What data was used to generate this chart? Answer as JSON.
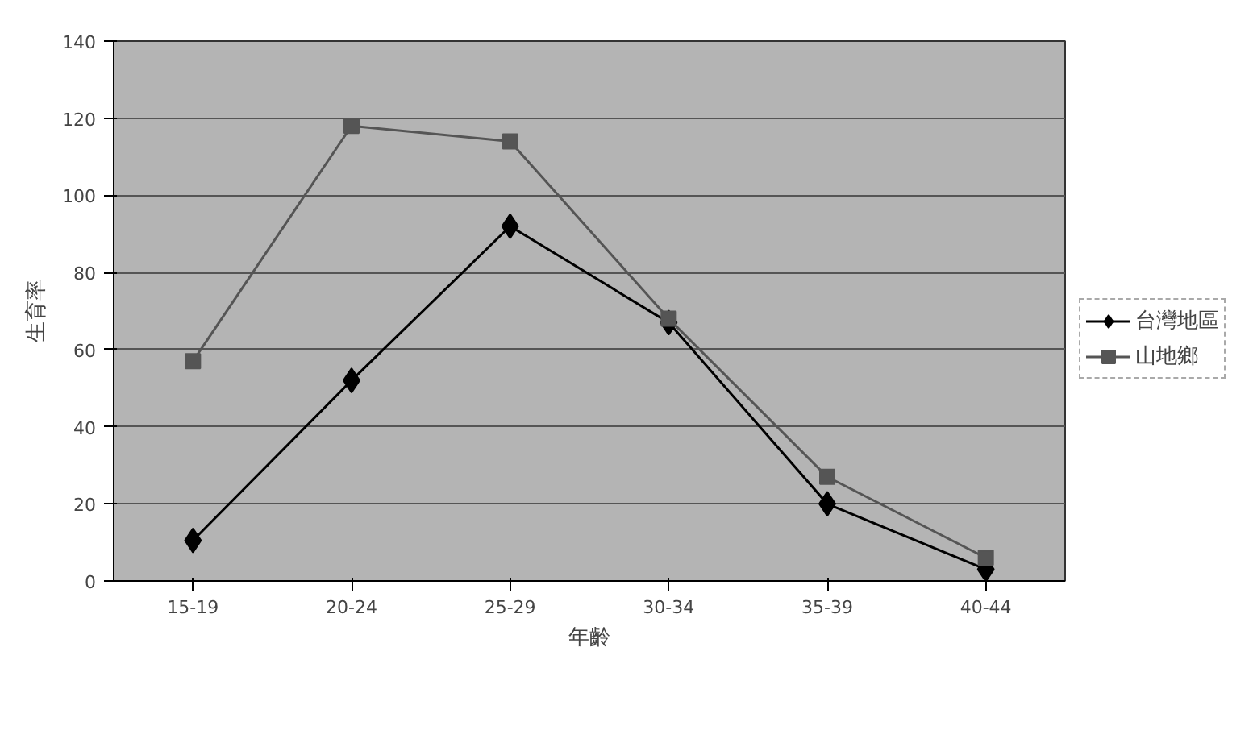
{
  "chart_data": {
    "type": "line",
    "xlabel": "年齡",
    "ylabel": "生育率",
    "categories": [
      "15-19",
      "20-24",
      "25-29",
      "30-34",
      "35-39",
      "40-44"
    ],
    "series": [
      {
        "name": "台灣地區",
        "color": "#000000",
        "marker": "diamond",
        "values": [
          10.5,
          52,
          92,
          67,
          20,
          3
        ]
      },
      {
        "name": "山地鄉",
        "color": "#555555",
        "marker": "square",
        "values": [
          57,
          118,
          114,
          68,
          27,
          6
        ]
      }
    ],
    "ylim": [
      0,
      140
    ],
    "yticks": [
      0,
      20,
      40,
      60,
      80,
      100,
      120,
      140
    ],
    "grid": "y",
    "legend": "right"
  }
}
